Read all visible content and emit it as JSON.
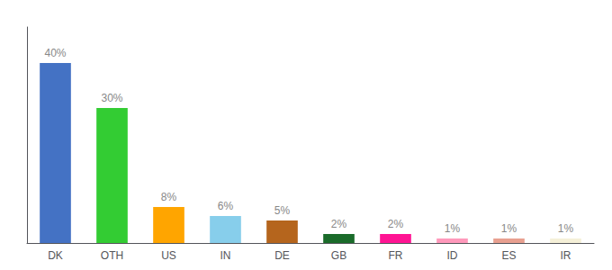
{
  "chart_data": {
    "type": "bar",
    "categories": [
      "DK",
      "OTH",
      "US",
      "IN",
      "DE",
      "GB",
      "FR",
      "ID",
      "ES",
      "IR"
    ],
    "values": [
      40,
      30,
      8,
      6,
      5,
      2,
      2,
      1,
      1,
      1
    ],
    "value_labels": [
      "40%",
      "30%",
      "8%",
      "6%",
      "5%",
      "2%",
      "2%",
      "1%",
      "1%",
      "1%"
    ],
    "colors": [
      "#4472c4",
      "#33cc33",
      "#ffa500",
      "#87ceeb",
      "#b5651d",
      "#1a6b2a",
      "#ff1493",
      "#ff99bb",
      "#e8a090",
      "#f5f0d8"
    ],
    "ylim": [
      0,
      48
    ],
    "data_labels": true,
    "tick_labels": "x",
    "grid": false
  }
}
